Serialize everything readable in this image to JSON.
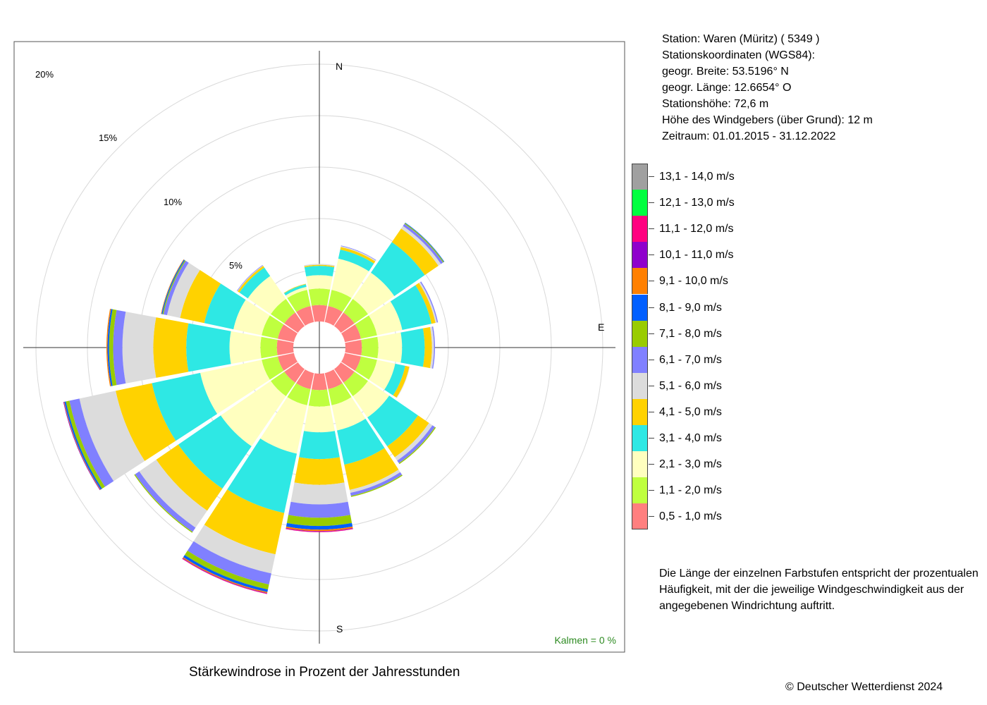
{
  "station_info": {
    "station": "Station:  Waren (Müritz)  ( 5349 )",
    "coords_title": "Stationskoordinaten (WGS84):",
    "lat": "geogr. Breite: 53.5196° N",
    "lon": "geogr. Länge: 12.6654° O",
    "height": "Stationshöhe: 72,6 m",
    "sensor_height": "Höhe des Windgebers (über Grund): 12 m",
    "period": "Zeitraum: 01.01.2015 - 31.12.2022"
  },
  "note": "Die Länge der einzelnen Farbstufen entspricht der prozentualen Häufigkeit, mit der die jeweilige Windgeschwindigkeit aus der angegebenen Windrichtung auftritt.",
  "caption": "Stärkewindrose in Prozent der Jahresstunden",
  "copyright": "© Deutscher Wetterdienst  2024",
  "calm": "Kalmen  =  0 %",
  "calm_color": "#2e8b22",
  "chart_data": {
    "type": "wind_rose",
    "directions": [
      "N",
      "NNE",
      "NE",
      "ENE",
      "E",
      "ESE",
      "SE",
      "SSE",
      "S",
      "SSW",
      "SW",
      "WSW",
      "W",
      "WNW",
      "NW",
      "NNW"
    ],
    "compass_labels": [
      "N",
      "E",
      "S"
    ],
    "ring_labels": [
      "5%",
      "10%",
      "15%",
      "20%"
    ],
    "calm_percent": 0,
    "speed_classes": [
      {
        "label": "0,5 - 1,0 m/s",
        "color": "#ff7f7f"
      },
      {
        "label": "1,1 - 2,0 m/s",
        "color": "#bfff3f"
      },
      {
        "label": "2,1 - 3,0 m/s",
        "color": "#ffffbf"
      },
      {
        "label": "3,1 - 4,0 m/s",
        "color": "#2ee8e4"
      },
      {
        "label": "4,1 - 5,0 m/s",
        "color": "#ffd200"
      },
      {
        "label": "5,1 - 6,0 m/s",
        "color": "#dcdcdc"
      },
      {
        "label": "6,1 - 7,0 m/s",
        "color": "#8080ff"
      },
      {
        "label": "7,1 - 8,0 m/s",
        "color": "#99cc00"
      },
      {
        "label": "8,1 - 9,0 m/s",
        "color": "#005fff"
      },
      {
        "label": "9,1 - 10,0 m/s",
        "color": "#ff8000"
      },
      {
        "label": "10,1 - 11,0 m/s",
        "color": "#8f00cc"
      },
      {
        "label": "11,1 - 12,0 m/s",
        "color": "#ff0080"
      },
      {
        "label": "12,1 - 13,0 m/s",
        "color": "#00ff40"
      },
      {
        "label": "13,1 - 14,0 m/s",
        "color": "#a0a0a0"
      }
    ],
    "cumulative_percent": [
      [
        1.6,
        3.2,
        4.5,
        5.4,
        5.5,
        5.6,
        5.6
      ],
      [
        1.6,
        3.2,
        6.3,
        7.2,
        7.45,
        7.55,
        7.6
      ],
      [
        1.6,
        3.2,
        6.3,
        9.9,
        11.5,
        11.8,
        12.05,
        12.15,
        12.2
      ],
      [
        1.6,
        3.2,
        5.7,
        8.6,
        9.0,
        9.15,
        9.25
      ],
      [
        1.6,
        3.2,
        5.5,
        7.7,
        8.4,
        8.6,
        8.7
      ],
      [
        1.6,
        3.2,
        5.0,
        6.0,
        6.4,
        6.45
      ],
      [
        1.6,
        3.2,
        5.7,
        9.1,
        10.4,
        10.8,
        11.1,
        11.2
      ],
      [
        1.6,
        3.2,
        5.7,
        9.1,
        11.6,
        11.9,
        12.2,
        12.3
      ],
      [
        1.6,
        3.2,
        5.7,
        8.3,
        10.8,
        12.7,
        14.0,
        14.8,
        15.15,
        15.3,
        15.35,
        15.4
      ],
      [
        1.6,
        3.2,
        8.0,
        13.9,
        18.0,
        19.9,
        21.0,
        21.5,
        21.75,
        21.85,
        21.9,
        21.95
      ],
      [
        1.6,
        3.2,
        9.1,
        14.1,
        16.7,
        18.7,
        19.2,
        19.3
      ],
      [
        1.6,
        3.2,
        9.3,
        14.1,
        17.7,
        21.3,
        22.3,
        22.65,
        22.8,
        22.85,
        22.9
      ],
      [
        1.6,
        3.2,
        6.2,
        10.4,
        13.6,
        16.6,
        17.5,
        17.9,
        18.05,
        18.15
      ],
      [
        1.6,
        3.2,
        6.0,
        8.9,
        11.3,
        12.6,
        12.95,
        13.05,
        13.15,
        13.2
      ],
      [
        1.6,
        3.2,
        5.9,
        6.9,
        7.1,
        7.15,
        7.2
      ],
      [
        1.6,
        3.2,
        3.5,
        3.75,
        3.8
      ]
    ]
  }
}
